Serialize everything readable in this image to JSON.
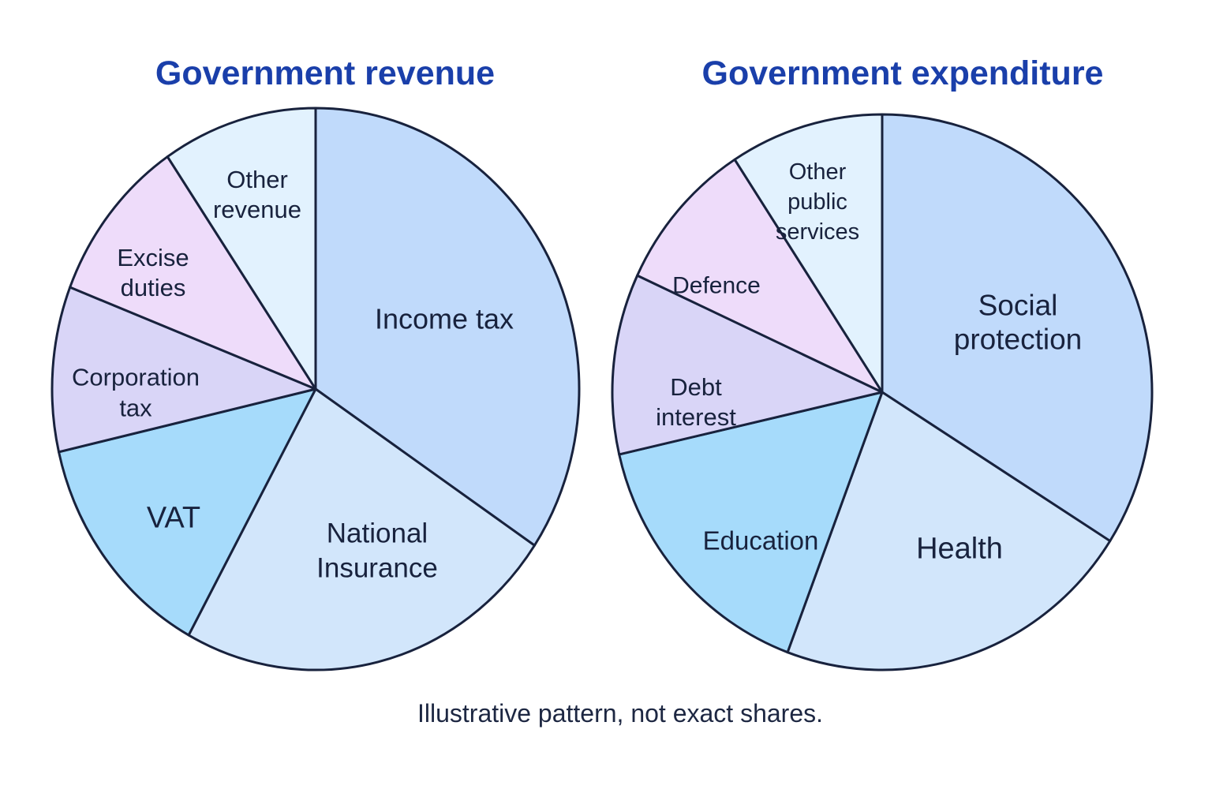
{
  "chart_data": [
    {
      "type": "pie",
      "title": "Government revenue",
      "slices": [
        {
          "label": "Income tax",
          "value": 34.4,
          "color": "#c0dafb"
        },
        {
          "label": "National Insurance",
          "value": 23.6,
          "color": "#d2e6fb"
        },
        {
          "label": "VAT",
          "value": 13.4,
          "color": "#a6dbfb"
        },
        {
          "label": "Corporation tax",
          "value": 9.5,
          "color": "#d9d5f7"
        },
        {
          "label": "Excise duties",
          "value": 9.6,
          "color": "#eedcfa"
        },
        {
          "label": "Other revenue",
          "value": 9.5,
          "color": "#e2f2fe"
        }
      ]
    },
    {
      "type": "pie",
      "title": "Government expenditure",
      "slices": [
        {
          "label": "Social protection",
          "value": 34.0,
          "color": "#c0dafb"
        },
        {
          "label": "Health",
          "value": 21.7,
          "color": "#d2e6fb"
        },
        {
          "label": "Education",
          "value": 15.7,
          "color": "#a6dbfb"
        },
        {
          "label": "Debt interest",
          "value": 10.5,
          "color": "#d9d5f7"
        },
        {
          "label": "Defence",
          "value": 8.9,
          "color": "#eedcfa"
        },
        {
          "label": "Other public services",
          "value": 9.2,
          "color": "#e2f2fe"
        }
      ]
    }
  ],
  "note": "Illustrative pattern, not exact shares."
}
